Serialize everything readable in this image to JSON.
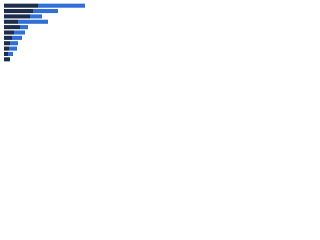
{
  "chart_data": {
    "type": "stacked-bar-horizontal",
    "categories": [
      null,
      null,
      null,
      null,
      null,
      null,
      null,
      null,
      null,
      null,
      null
    ],
    "series": [
      {
        "color": "#1f2d4d",
        "values": [
          34,
          29,
          26,
          14,
          16,
          10,
          8,
          6,
          5,
          4,
          6
        ]
      },
      {
        "color": "#2f6fd6",
        "values": [
          47,
          25,
          12,
          30,
          8,
          11,
          10,
          8,
          8,
          5,
          0
        ]
      }
    ],
    "xlim": [
      0,
      96
    ]
  }
}
